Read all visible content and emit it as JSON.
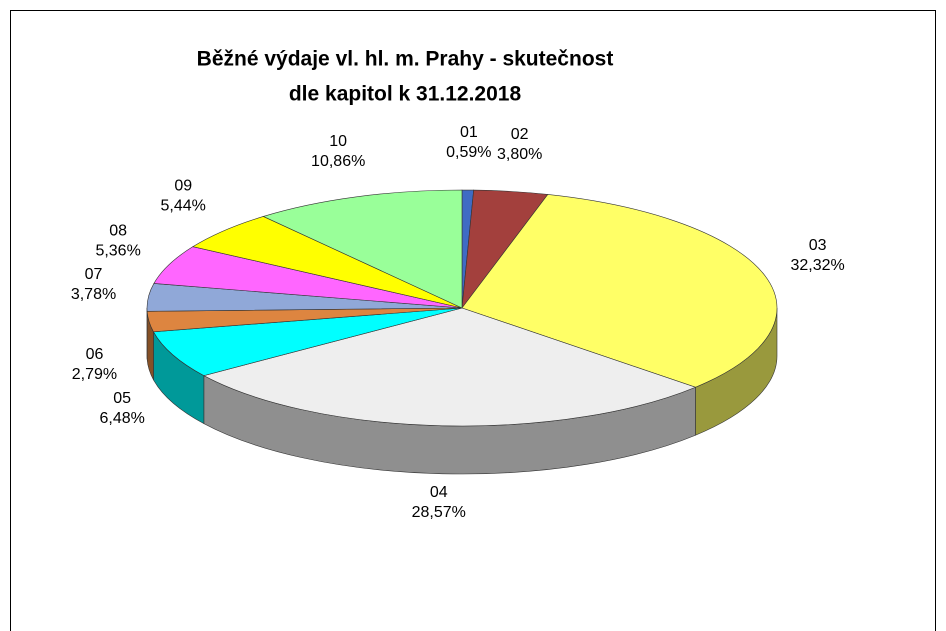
{
  "chart_data": {
    "type": "pie",
    "title": [
      "Běžné výdaje vl. hl. m. Prahy - skutečnost",
      "dle kapitol k 31.12.2018"
    ],
    "categories": [
      "01",
      "02",
      "03",
      "04",
      "05",
      "06",
      "07",
      "08",
      "09",
      "10"
    ],
    "values": [
      0.59,
      3.8,
      32.32,
      28.57,
      6.48,
      2.79,
      3.78,
      5.36,
      5.44,
      10.86
    ],
    "value_labels": [
      "0,59%",
      "3,80%",
      "32,32%",
      "28,57%",
      "6,48%",
      "2,79%",
      "3,78%",
      "5,36%",
      "5,44%",
      "10,86%"
    ],
    "colors": [
      "#3f6bc4",
      "#a3403d",
      "#ffff66",
      "#eeeeee",
      "#00ffff",
      "#dd8540",
      "#90a8d8",
      "#ff66ff",
      "#ffff00",
      "#99ff99"
    ]
  }
}
